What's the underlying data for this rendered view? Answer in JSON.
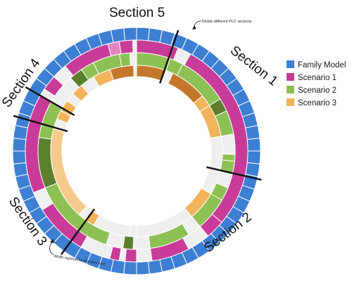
{
  "colors": {
    "family": "#3d7fd3",
    "s1": "#c83b98",
    "s1_light": "#e684c2",
    "s2": "#8dc154",
    "s2_dark": "#5c7f2d",
    "s3": "#f2b35a",
    "s3_dark": "#c4772b",
    "s3_light": "#f5cb8d",
    "empty": "#efefef",
    "divider": "#111111"
  },
  "section_labels": [
    "Section 1",
    "Section 2",
    "Section 3",
    "Section 4",
    "Section 5"
  ],
  "annotations": {
    "divide": "Divide different PLC sections",
    "width": "Width represents element size"
  },
  "legend": [
    {
      "label": "Family Model",
      "color": "#3d7fd3"
    },
    {
      "label": "Scenario 1",
      "color": "#c83b98"
    },
    {
      "label": "Scenario 2",
      "color": "#8dc154"
    },
    {
      "label": "Scenario 3",
      "color": "#f2b35a"
    }
  ],
  "rings": {
    "scenario1": [
      {
        "from": 0,
        "to": 22,
        "c": "s1"
      },
      {
        "from": 22,
        "to": 29,
        "c": "empty"
      },
      {
        "from": 29,
        "to": 130,
        "c": "s1"
      },
      {
        "from": 130,
        "to": 140,
        "c": "s1"
      },
      {
        "from": 140,
        "to": 152,
        "c": "empty"
      },
      {
        "from": 152,
        "to": 172,
        "c": "s1"
      },
      {
        "from": 172,
        "to": 180,
        "c": "empty"
      },
      {
        "from": 180,
        "to": 186,
        "c": "s1"
      },
      {
        "from": 186,
        "to": 189,
        "c": "empty"
      },
      {
        "from": 189,
        "to": 194,
        "c": "s1"
      },
      {
        "from": 194,
        "to": 210,
        "c": "empty"
      },
      {
        "from": 210,
        "to": 238,
        "c": "s1"
      },
      {
        "from": 238,
        "to": 248,
        "c": "empty"
      },
      {
        "from": 248,
        "to": 300,
        "c": "s1"
      },
      {
        "from": 300,
        "to": 304,
        "c": "empty"
      },
      {
        "from": 304,
        "to": 312,
        "c": "s1"
      },
      {
        "from": 312,
        "to": 320,
        "c": "empty"
      },
      {
        "from": 320,
        "to": 345,
        "c": "s1"
      },
      {
        "from": 345,
        "to": 351,
        "c": "s1_light"
      },
      {
        "from": 351,
        "to": 358,
        "c": "s1"
      },
      {
        "from": 358,
        "to": 360,
        "c": "empty"
      }
    ],
    "scenario2": [
      {
        "from": 0,
        "to": 20,
        "c": "s2"
      },
      {
        "from": 20,
        "to": 28,
        "c": "s2"
      },
      {
        "from": 28,
        "to": 58,
        "c": "s2"
      },
      {
        "from": 58,
        "to": 66,
        "c": "s2_dark"
      },
      {
        "from": 66,
        "to": 80,
        "c": "s2"
      },
      {
        "from": 80,
        "to": 92,
        "c": "empty"
      },
      {
        "from": 92,
        "to": 96,
        "c": "s2"
      },
      {
        "from": 96,
        "to": 104,
        "c": "s2"
      },
      {
        "from": 104,
        "to": 112,
        "c": "empty"
      },
      {
        "from": 112,
        "to": 120,
        "c": "s2"
      },
      {
        "from": 120,
        "to": 140,
        "c": "s2"
      },
      {
        "from": 140,
        "to": 148,
        "c": "empty"
      },
      {
        "from": 148,
        "to": 172,
        "c": "s2"
      },
      {
        "from": 172,
        "to": 182,
        "c": "empty"
      },
      {
        "from": 182,
        "to": 188,
        "c": "s2_dark"
      },
      {
        "from": 188,
        "to": 198,
        "c": "empty"
      },
      {
        "from": 198,
        "to": 248,
        "c": "s2"
      },
      {
        "from": 248,
        "to": 278,
        "c": "s2_dark"
      },
      {
        "from": 278,
        "to": 300,
        "c": "s2"
      },
      {
        "from": 300,
        "to": 318,
        "c": "empty"
      },
      {
        "from": 318,
        "to": 326,
        "c": "s2_dark"
      },
      {
        "from": 326,
        "to": 334,
        "c": "s2"
      },
      {
        "from": 334,
        "to": 350,
        "c": "s2"
      },
      {
        "from": 350,
        "to": 356,
        "c": "s2"
      },
      {
        "from": 356,
        "to": 360,
        "c": "empty"
      }
    ],
    "scenario3": [
      {
        "from": 0,
        "to": 20,
        "c": "s3_dark"
      },
      {
        "from": 20,
        "to": 25,
        "c": "empty"
      },
      {
        "from": 25,
        "to": 50,
        "c": "s3_dark"
      },
      {
        "from": 50,
        "to": 58,
        "c": "s3"
      },
      {
        "from": 58,
        "to": 80,
        "c": "s3"
      },
      {
        "from": 80,
        "to": 120,
        "c": "empty"
      },
      {
        "from": 120,
        "to": 140,
        "c": "s3"
      },
      {
        "from": 140,
        "to": 180,
        "c": "empty"
      },
      {
        "from": 180,
        "to": 185,
        "c": "empty"
      },
      {
        "from": 185,
        "to": 210,
        "c": "empty"
      },
      {
        "from": 210,
        "to": 216,
        "c": "s3"
      },
      {
        "from": 216,
        "to": 222,
        "c": "empty"
      },
      {
        "from": 222,
        "to": 285,
        "c": "s3_light"
      },
      {
        "from": 285,
        "to": 292,
        "c": "empty"
      },
      {
        "from": 292,
        "to": 298,
        "c": "s3"
      },
      {
        "from": 298,
        "to": 306,
        "c": "s3"
      },
      {
        "from": 306,
        "to": 312,
        "c": "empty"
      },
      {
        "from": 312,
        "to": 320,
        "c": "s3"
      },
      {
        "from": 320,
        "to": 330,
        "c": "empty"
      },
      {
        "from": 330,
        "to": 342,
        "c": "s3"
      },
      {
        "from": 342,
        "to": 358,
        "c": "s3_dark"
      },
      {
        "from": 358,
        "to": 360,
        "c": "empty"
      }
    ]
  }
}
